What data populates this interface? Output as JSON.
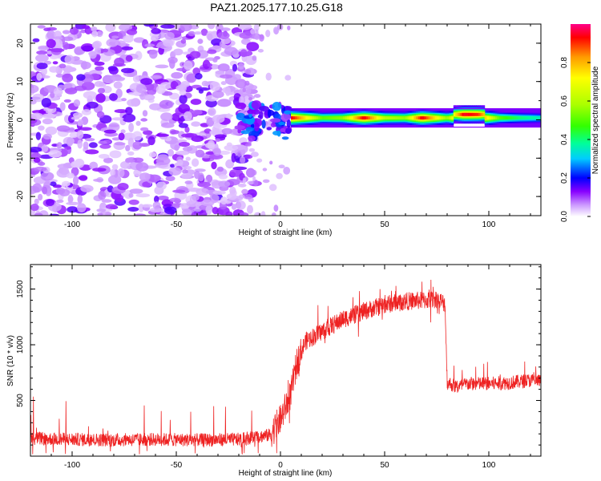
{
  "title": "PAZ1.2025.177.10.25.G18",
  "chart_data": [
    {
      "type": "heatmap",
      "xlabel": "Height of straight line (km)",
      "ylabel": "Frequency (Hz)",
      "xlim": [
        -120,
        125
      ],
      "ylim": [
        -25,
        25
      ],
      "x_ticks": [
        -100,
        -50,
        0,
        50,
        100
      ],
      "y_ticks": [
        -20,
        -10,
        0,
        10,
        20
      ],
      "colorbar": {
        "label": "Normalized spectral amplitude",
        "range": [
          0,
          1
        ],
        "ticks": [
          "0.0",
          "0.2",
          "0.4",
          "0.6",
          "0.8"
        ],
        "colors": [
          "#ffffff",
          "#cc99ff",
          "#8800ff",
          "#0000ff",
          "#00ccff",
          "#00ff99",
          "#33ff00",
          "#aaff00",
          "#ffff00",
          "#ff9900",
          "#ff0000",
          "#ff0088"
        ]
      },
      "noise_region": {
        "x": [
          -120,
          -20
        ],
        "level": 0.15
      },
      "transition_region": {
        "x": [
          -20,
          5
        ],
        "level": 0.25
      },
      "signal_band": {
        "freq_hz": 0.5,
        "x": [
          5,
          125
        ],
        "points": [
          {
            "x": 5,
            "amp": 0.95
          },
          {
            "x": 20,
            "amp": 0.5
          },
          {
            "x": 30,
            "amp": 0.55
          },
          {
            "x": 40,
            "amp": 0.95
          },
          {
            "x": 50,
            "amp": 0.6
          },
          {
            "x": 60,
            "amp": 0.55
          },
          {
            "x": 68,
            "amp": 0.95
          },
          {
            "x": 80,
            "amp": 0.55
          },
          {
            "x": 88,
            "amp": 0.95
          },
          {
            "x": 95,
            "amp": 0.9
          },
          {
            "x": 105,
            "amp": 0.5
          },
          {
            "x": 115,
            "amp": 0.4
          },
          {
            "x": 125,
            "amp": 0.35
          }
        ]
      }
    },
    {
      "type": "line",
      "xlabel": "Height of straight line (km)",
      "ylabel": "SNR (10 * v/v)",
      "xlim": [
        -120,
        125
      ],
      "ylim": [
        0,
        1720
      ],
      "x_ticks": [
        -100,
        -50,
        0,
        50,
        100
      ],
      "y_ticks": [
        500,
        1000,
        1500
      ],
      "color": "#ee2222",
      "series": [
        {
          "x": [
            -120,
            -100,
            -80,
            -60,
            -40,
            -20,
            -5,
            0,
            5,
            8,
            12,
            20,
            30,
            40,
            50,
            60,
            70,
            75,
            79,
            80,
            85,
            90,
            100,
            110,
            120,
            125
          ],
          "y": [
            160,
            150,
            145,
            150,
            145,
            150,
            190,
            330,
            560,
            850,
            1030,
            1120,
            1230,
            1300,
            1360,
            1390,
            1400,
            1410,
            1370,
            660,
            620,
            650,
            650,
            660,
            680,
            670
          ]
        }
      ]
    }
  ]
}
